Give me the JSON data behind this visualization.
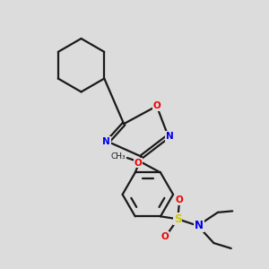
{
  "bg_color": "#dcdcdc",
  "bond_color": "#1a1a1a",
  "N_color": "#0000ee",
  "O_color": "#ee0000",
  "S_color": "#cccc00",
  "lw": 1.6,
  "xlim": [
    0,
    10
  ],
  "ylim": [
    0,
    10
  ]
}
